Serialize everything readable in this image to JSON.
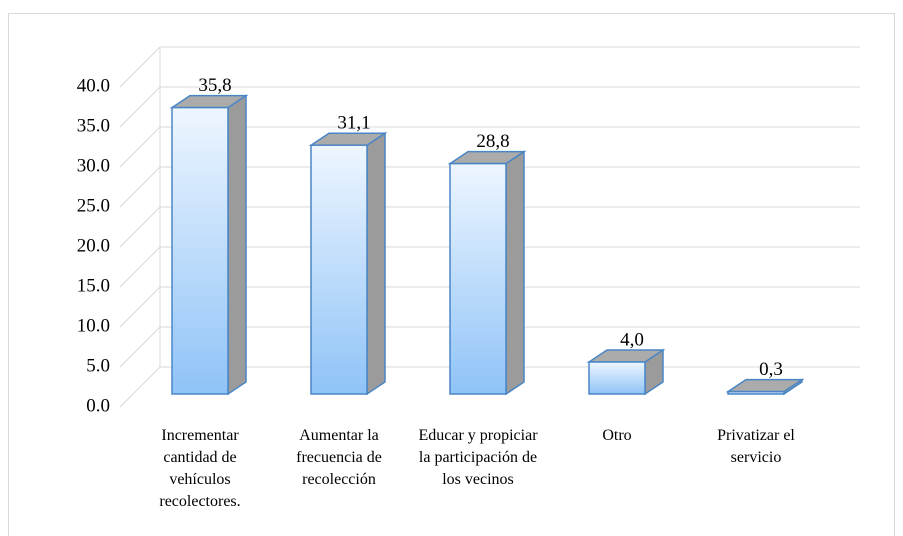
{
  "chart_data": {
    "type": "bar",
    "categories": [
      "Incrementar cantidad de vehículos recolectores.",
      "Aumentar la frecuencia de recolección",
      "Educar y propiciar la participación de los vecinos",
      "Otro",
      "Privatizar el servicio"
    ],
    "values": [
      35.8,
      31.1,
      28.8,
      4.0,
      0.3
    ],
    "value_labels": [
      "35,8",
      "31,1",
      "28,8",
      "4,0",
      "0,3"
    ],
    "color": "#8fc3f7",
    "ylim": [
      0,
      40
    ],
    "yticks": [
      {
        "value": 0,
        "label": "0.0"
      },
      {
        "value": 5,
        "label": "5.0"
      },
      {
        "value": 10,
        "label": "10.0"
      },
      {
        "value": 15,
        "label": "15.0"
      },
      {
        "value": 20,
        "label": "20.0"
      },
      {
        "value": 25,
        "label": "25.0"
      },
      {
        "value": 30,
        "label": "30.0"
      },
      {
        "value": 35,
        "label": "35.0"
      },
      {
        "value": 40,
        "label": "40.0"
      }
    ],
    "grid": true
  }
}
